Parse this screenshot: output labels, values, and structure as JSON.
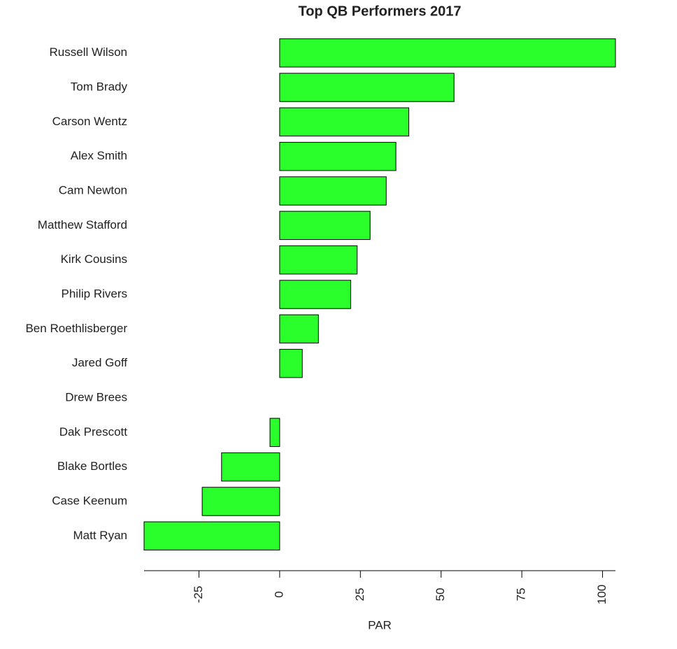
{
  "chart_data": {
    "type": "bar",
    "orientation": "horizontal",
    "title": "Top QB Performers 2017",
    "x_label": "PAR",
    "categories": [
      "Russell Wilson",
      "Tom Brady",
      "Carson Wentz",
      "Alex Smith",
      "Cam Newton",
      "Matthew Stafford",
      "Kirk Cousins",
      "Philip Rivers",
      "Ben Roethlisberger",
      "Jared Goff",
      "Drew Brees",
      "Dak Prescott",
      "Blake Bortles",
      "Case Keenum",
      "Matt Ryan"
    ],
    "values": [
      104,
      54,
      40,
      36,
      33,
      28,
      24,
      22,
      12,
      7,
      0,
      -3,
      -18,
      -24,
      -42
    ],
    "color": "#2bff2b",
    "xlim": [
      -42,
      104
    ],
    "xticks": [
      -25,
      0,
      25,
      50,
      75,
      100
    ]
  }
}
